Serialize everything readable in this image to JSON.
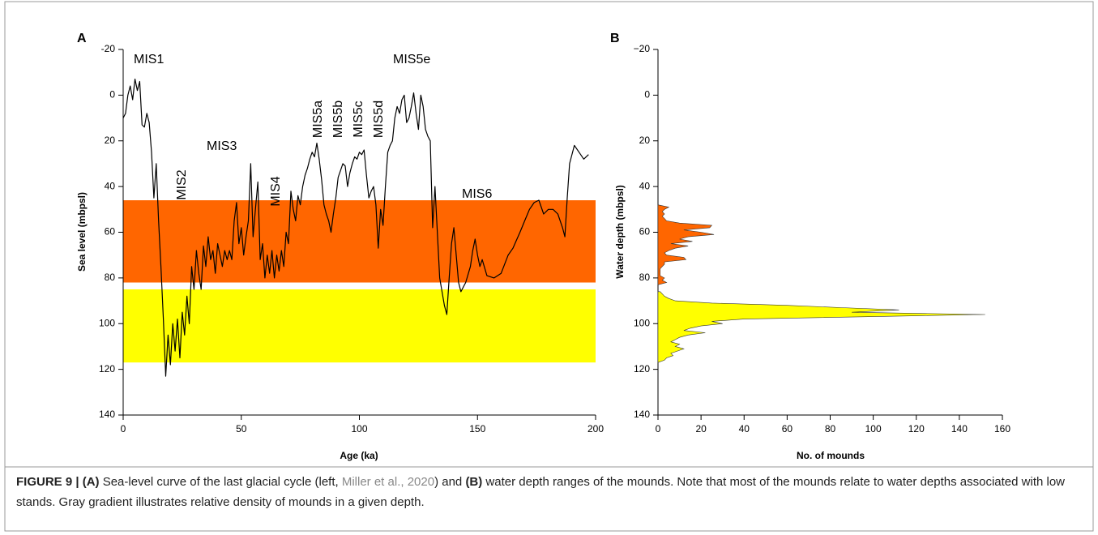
{
  "chart_data": [
    {
      "type": "line",
      "panel": "A",
      "x_label": "Age (ka)",
      "y_label": "Sea level (mbpsl)",
      "x": [
        0,
        1,
        2,
        3,
        4,
        5,
        6,
        7,
        8,
        9,
        10,
        11,
        12,
        13,
        14,
        15,
        16,
        17,
        18,
        19,
        20,
        21,
        22,
        23,
        24,
        25,
        26,
        27,
        28,
        29,
        30,
        31,
        32,
        33,
        34,
        35,
        36,
        37,
        38,
        39,
        40,
        41,
        42,
        43,
        44,
        45,
        46,
        47,
        48,
        49,
        50,
        51,
        52,
        53,
        54,
        55,
        56,
        57,
        58,
        59,
        60,
        61,
        62,
        63,
        64,
        65,
        66,
        67,
        68,
        69,
        70,
        71,
        72,
        73,
        74,
        75,
        76,
        77,
        78,
        79,
        80,
        81,
        82,
        83,
        84,
        85,
        86,
        87,
        88,
        89,
        90,
        91,
        92,
        93,
        94,
        95,
        96,
        97,
        98,
        99,
        100,
        101,
        102,
        103,
        104,
        105,
        106,
        107,
        108,
        109,
        110,
        111,
        112,
        113,
        114,
        115,
        116,
        117,
        118,
        119,
        120,
        121,
        122,
        123,
        124,
        125,
        126,
        127,
        128,
        129,
        130,
        131,
        132,
        133,
        134,
        135,
        136,
        137,
        138,
        139,
        140,
        141,
        142,
        143,
        145,
        147,
        148,
        149,
        150,
        151,
        152,
        154,
        157,
        160,
        163,
        165,
        168,
        170,
        172,
        174,
        176,
        178,
        180,
        182,
        184,
        186,
        187,
        188,
        189,
        191,
        193,
        195,
        197
      ],
      "values": [
        10,
        8,
        0,
        -4,
        2,
        -7,
        -2,
        -6,
        13,
        14,
        8,
        12,
        25,
        45,
        30,
        55,
        75,
        98,
        123,
        105,
        118,
        100,
        112,
        98,
        115,
        95,
        105,
        88,
        100,
        75,
        85,
        68,
        78,
        85,
        66,
        75,
        62,
        72,
        68,
        78,
        65,
        70,
        75,
        68,
        72,
        68,
        72,
        55,
        47,
        65,
        58,
        70,
        62,
        55,
        30,
        62,
        50,
        38,
        72,
        65,
        80,
        70,
        78,
        68,
        80,
        70,
        77,
        68,
        75,
        60,
        65,
        42,
        50,
        55,
        44,
        48,
        40,
        35,
        32,
        28,
        25,
        27,
        21,
        28,
        37,
        48,
        52,
        55,
        60,
        52,
        45,
        36,
        33,
        30,
        31,
        40,
        34,
        30,
        27,
        28,
        25,
        26,
        24,
        35,
        45,
        42,
        40,
        48,
        67,
        50,
        57,
        40,
        25,
        22,
        20,
        10,
        5,
        8,
        2,
        0,
        12,
        10,
        5,
        -1,
        8,
        15,
        0,
        5,
        15,
        18,
        20,
        58,
        40,
        60,
        80,
        86,
        92,
        96,
        80,
        65,
        58,
        70,
        82,
        86,
        82,
        75,
        68,
        63,
        70,
        75,
        72,
        79,
        80,
        78,
        70,
        67,
        60,
        55,
        50,
        47,
        46,
        52,
        50,
        50,
        52,
        58,
        62,
        45,
        30,
        22,
        25,
        28,
        26
      ],
      "color": "#000000",
      "xlim": [
        0,
        200
      ],
      "xticks": [
        0,
        50,
        100,
        150,
        200
      ],
      "ylim": [
        -20,
        140
      ],
      "yticks": [
        -20,
        0,
        20,
        40,
        60,
        80,
        100,
        120,
        140
      ],
      "y_inverted": true,
      "bands": [
        {
          "from": 46,
          "to": 82,
          "color": "#ff6600"
        },
        {
          "from": 85,
          "to": 117,
          "color": "#ffff00"
        }
      ],
      "annotations": [
        "MIS1",
        "MIS2",
        "MIS3",
        "MIS4",
        "MIS5a",
        "MIS5b",
        "MIS5c",
        "MIS5d",
        "MIS5e",
        "MIS6"
      ]
    },
    {
      "type": "area",
      "orientation": "horizontal",
      "panel": "B",
      "x_label": "No. of mounds",
      "y_label": "Water depth (mbpsl)",
      "series": [
        {
          "color": "#ff6600",
          "depth": [
            48,
            49,
            50,
            51,
            52,
            53,
            54,
            55,
            56,
            57,
            58,
            59,
            60,
            61,
            62,
            63,
            64,
            65,
            66,
            67,
            68,
            69,
            70,
            71,
            72,
            73,
            74,
            75,
            76,
            77,
            78,
            79,
            80,
            81,
            82,
            83
          ],
          "values": [
            0,
            5,
            3,
            2,
            3,
            2,
            3,
            4,
            10,
            25,
            24,
            12,
            20,
            26,
            14,
            10,
            16,
            6,
            14,
            8,
            5,
            3,
            4,
            12,
            13,
            3,
            3,
            2,
            1,
            1,
            1,
            1,
            3,
            2,
            4,
            0
          ]
        },
        {
          "color": "#ffff00",
          "depth": [
            86,
            87,
            88,
            89,
            90,
            91,
            92,
            93,
            94,
            95,
            96,
            97,
            98,
            99,
            100,
            101,
            102,
            103,
            104,
            105,
            106,
            107,
            108,
            109,
            110,
            111,
            112,
            113,
            114,
            115,
            116,
            117
          ],
          "values": [
            1,
            2,
            3,
            5,
            8,
            25,
            60,
            85,
            112,
            90,
            152,
            95,
            40,
            25,
            30,
            20,
            15,
            12,
            22,
            14,
            10,
            8,
            6,
            10,
            8,
            12,
            9,
            6,
            7,
            4,
            3,
            0
          ]
        }
      ],
      "xlim": [
        0,
        160
      ],
      "xticks": [
        0,
        20,
        40,
        60,
        80,
        100,
        120,
        140,
        160
      ],
      "ylim": [
        -20,
        140
      ],
      "y_inverted": true,
      "yticks": [
        {
          "value": -20,
          "label": "−20"
        },
        0,
        20,
        40,
        60,
        80,
        100,
        120,
        140
      ]
    }
  ],
  "caption": [
    "FIGURE 9 | (A)",
    " Sea-level curve of the last glacial cycle (left, ",
    "Miller et al., 2020",
    ") and ",
    "(B)",
    " water depth ranges of the mounds. Note that most of the mounds relate to water depths associated with low stands. Gray gradient illustrates relative density of mounds in a given depth."
  ]
}
